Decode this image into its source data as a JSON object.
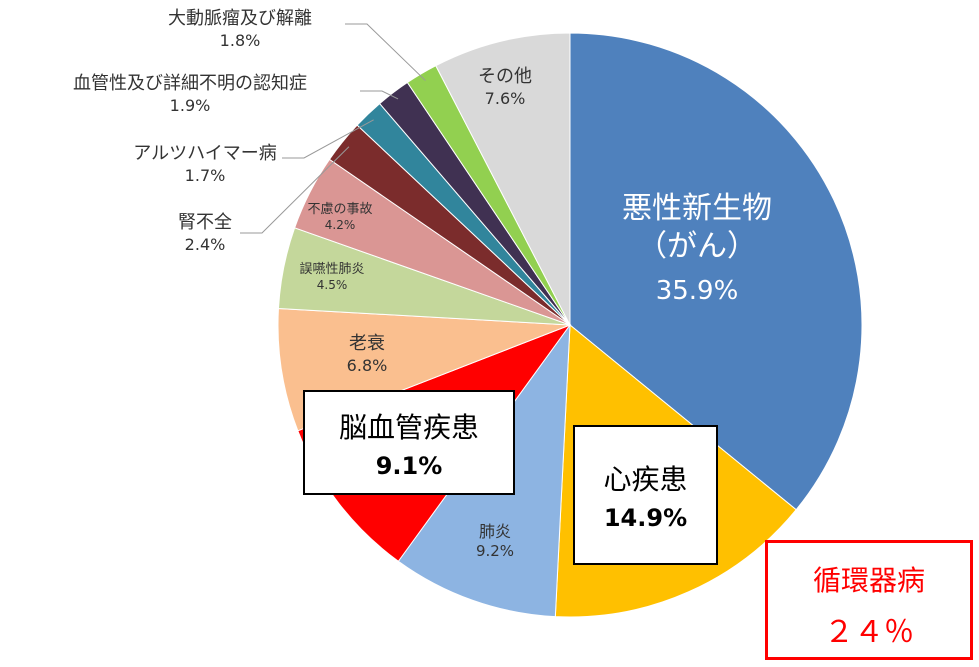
{
  "chart_data": {
    "type": "pie",
    "categories": [
      "悪性新生物（がん）",
      "心疾患",
      "肺炎",
      "脳血管疾患",
      "老衰",
      "誤嚥性肺炎",
      "不慮の事故",
      "腎不全",
      "アルツハイマー病",
      "血管性及び詳細不明の認知症",
      "大動脈瘤及び解離",
      "その他"
    ],
    "values": [
      35.9,
      14.9,
      9.2,
      9.1,
      6.8,
      4.5,
      4.2,
      2.4,
      1.7,
      1.9,
      1.8,
      7.6
    ],
    "value_labels": [
      "35.9%",
      "14.9%",
      "9.2%",
      "9.1%",
      "6.8%",
      "4.5%",
      "4.2%",
      "2.4%",
      "1.7%",
      "1.9%",
      "1.8%",
      "7.6%"
    ],
    "colors": [
      "#4f81bd",
      "#ffc000",
      "#8db4e2",
      "#ff0000",
      "#fabf8f",
      "#c4d79b",
      "#da9694",
      "#7b2c2c",
      "#31859c",
      "#403152",
      "#92d050",
      "#d9d9d9"
    ],
    "annotation": {
      "title": "循環器病",
      "value": "２４％"
    }
  }
}
